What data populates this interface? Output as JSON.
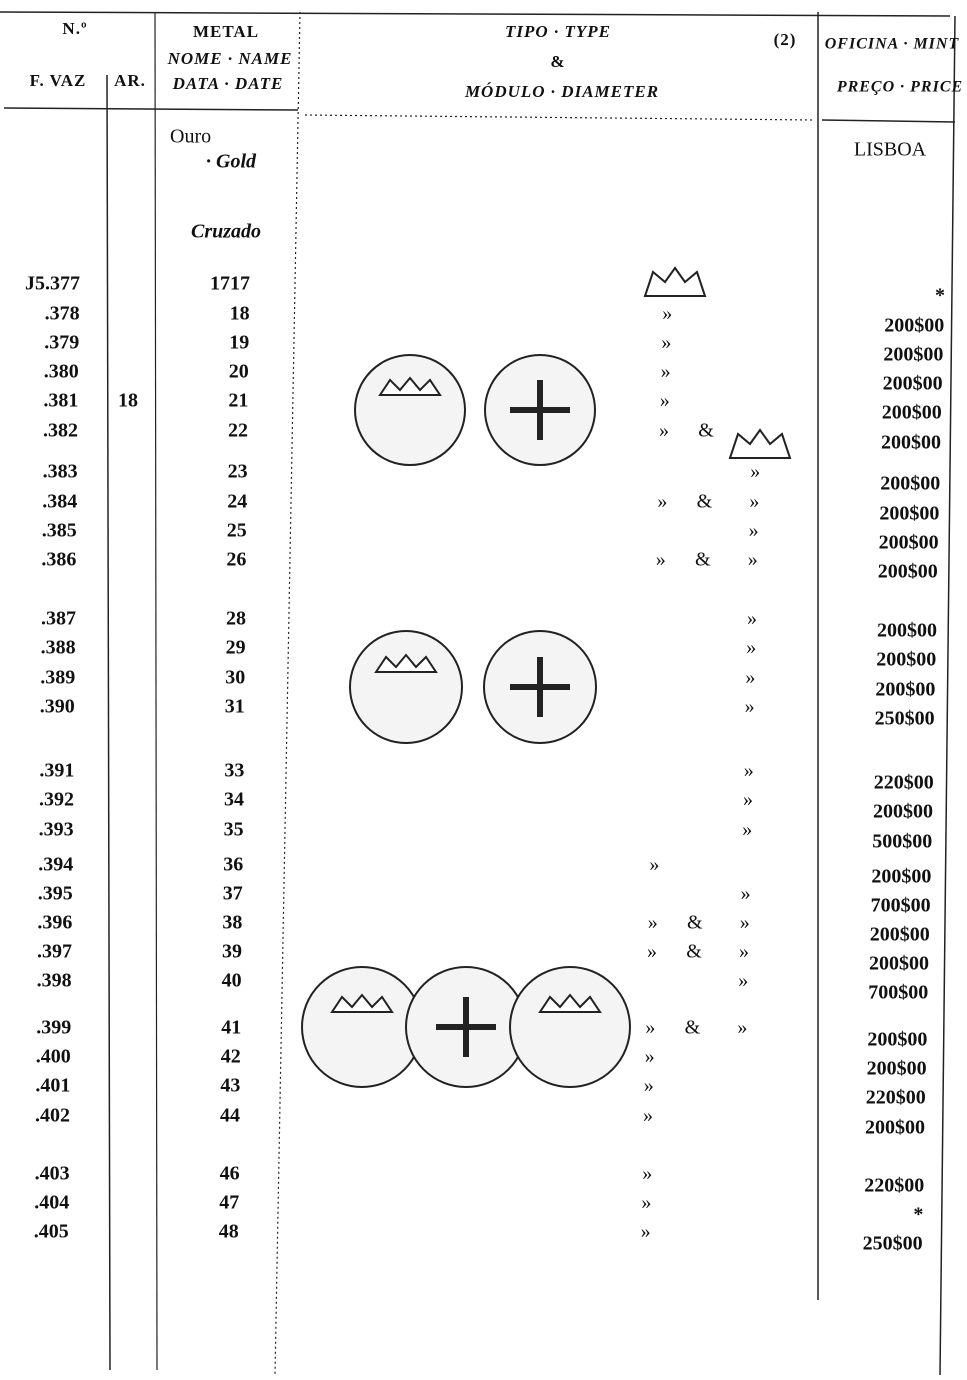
{
  "header": {
    "number": "N.º",
    "ref": "F. VAZ",
    "ar": "AR.",
    "metal": "METAL",
    "name": "NOME · NAME",
    "date": "DATA · DATE",
    "type": "TIPO · TYPE",
    "amp": "&",
    "diameter": "MÓDULO · DIAMETER",
    "note": "(2)",
    "mint": "OFICINA · MINT",
    "price": "PREÇO · PRICE"
  },
  "body": {
    "metal": "Ouro",
    "metal_en": "· Gold",
    "name": "Cruzado",
    "mint": "LISBOA",
    "ar": "18"
  },
  "rows": [
    {
      "no": "J5.377",
      "date": "1717",
      "type": [
        null,
        null,
        null
      ],
      "price": "*"
    },
    {
      "no": ".378",
      "date": "18",
      "type": [
        "»",
        null,
        null
      ],
      "price": "200$00"
    },
    {
      "no": ".379",
      "date": "19",
      "type": [
        "»",
        null,
        null
      ],
      "price": "200$00"
    },
    {
      "no": ".380",
      "date": "20",
      "type": [
        "»",
        null,
        null
      ],
      "price": "200$00"
    },
    {
      "no": ".381",
      "date": "21",
      "type": [
        "»",
        null,
        null
      ],
      "price": "200$00"
    },
    {
      "no": ".382",
      "date": "22",
      "type": [
        "»",
        "&",
        null
      ],
      "price": "200$00"
    },
    {
      "no": ".383",
      "date": "23",
      "type": [
        null,
        null,
        "»"
      ],
      "price": "200$00"
    },
    {
      "no": ".384",
      "date": "24",
      "type": [
        "»",
        "&",
        "»"
      ],
      "price": "200$00"
    },
    {
      "no": ".385",
      "date": "25",
      "type": [
        null,
        null,
        "»"
      ],
      "price": "200$00"
    },
    {
      "no": ".386",
      "date": "26",
      "type": [
        "»",
        "&",
        "»"
      ],
      "price": "200$00"
    },
    {
      "no": ".387",
      "date": "28",
      "type": [
        null,
        null,
        "»"
      ],
      "price": "200$00"
    },
    {
      "no": ".388",
      "date": "29",
      "type": [
        null,
        null,
        "»"
      ],
      "price": "200$00"
    },
    {
      "no": ".389",
      "date": "30",
      "type": [
        null,
        null,
        "»"
      ],
      "price": "200$00"
    },
    {
      "no": ".390",
      "date": "31",
      "type": [
        null,
        null,
        "»"
      ],
      "price": "250$00"
    },
    {
      "no": ".391",
      "date": "33",
      "type": [
        null,
        null,
        "»"
      ],
      "price": "220$00"
    },
    {
      "no": ".392",
      "date": "34",
      "type": [
        null,
        null,
        "»"
      ],
      "price": "200$00"
    },
    {
      "no": ".393",
      "date": "35",
      "type": [
        null,
        null,
        "»"
      ],
      "price": "500$00"
    },
    {
      "no": ".394",
      "date": "36",
      "type": [
        "»",
        null,
        null
      ],
      "price": "200$00"
    },
    {
      "no": ".395",
      "date": "37",
      "type": [
        null,
        null,
        "»"
      ],
      "price": "700$00"
    },
    {
      "no": ".396",
      "date": "38",
      "type": [
        "»",
        "&",
        "»"
      ],
      "price": "200$00"
    },
    {
      "no": ".397",
      "date": "39",
      "type": [
        "»",
        "&",
        "»"
      ],
      "price": "200$00"
    },
    {
      "no": ".398",
      "date": "40",
      "type": [
        null,
        null,
        "»"
      ],
      "price": "700$00"
    },
    {
      "no": ".399",
      "date": "41",
      "type": [
        "»",
        "&",
        "»"
      ],
      "price": "200$00"
    },
    {
      "no": ".400",
      "date": "42",
      "type": [
        "»",
        null,
        null
      ],
      "price": "200$00"
    },
    {
      "no": ".401",
      "date": "43",
      "type": [
        "»",
        null,
        null
      ],
      "price": "220$00"
    },
    {
      "no": ".402",
      "date": "44",
      "type": [
        "»",
        null,
        null
      ],
      "price": "200$00"
    },
    {
      "no": ".403",
      "date": "46",
      "type": [
        "»",
        null,
        null
      ],
      "price": "220$00"
    },
    {
      "no": ".404",
      "date": "47",
      "type": [
        "»",
        null,
        null
      ],
      "price": "*"
    },
    {
      "no": ".405",
      "date": "48",
      "type": [
        "»",
        null,
        null
      ],
      "price": "250$00"
    }
  ]
}
